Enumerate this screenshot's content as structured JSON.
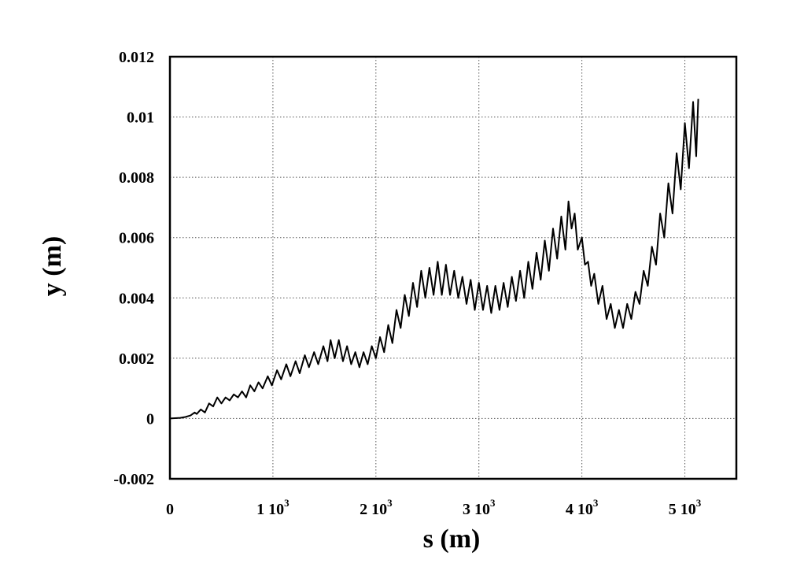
{
  "chart_data": {
    "type": "line",
    "xlabel": "s (m)",
    "ylabel": "y (m)",
    "xlim": [
      0,
      5500
    ],
    "ylim": [
      -0.002,
      0.012
    ],
    "grid": true,
    "x_ticks": [
      {
        "value": 0,
        "base": "0",
        "exp": ""
      },
      {
        "value": 1000,
        "base": "1 10",
        "exp": "3"
      },
      {
        "value": 2000,
        "base": "2 10",
        "exp": "3"
      },
      {
        "value": 3000,
        "base": "3 10",
        "exp": "3"
      },
      {
        "value": 4000,
        "base": "4 10",
        "exp": "3"
      },
      {
        "value": 5000,
        "base": "5 10",
        "exp": "3"
      }
    ],
    "y_ticks": [
      {
        "value": -0.002,
        "label": "-0.002"
      },
      {
        "value": 0,
        "label": "0"
      },
      {
        "value": 0.002,
        "label": "0.002"
      },
      {
        "value": 0.004,
        "label": "0.004"
      },
      {
        "value": 0.006,
        "label": "0.006"
      },
      {
        "value": 0.008,
        "label": "0.008"
      },
      {
        "value": 0.01,
        "label": "0.01"
      },
      {
        "value": 0.012,
        "label": "0.012"
      }
    ],
    "series": [
      {
        "color": "#000000",
        "points": [
          [
            0,
            0
          ],
          [
            100,
            2e-05
          ],
          [
            150,
            5e-05
          ],
          [
            200,
            0.0001
          ],
          [
            240,
            0.0002
          ],
          [
            260,
            0.00015
          ],
          [
            300,
            0.0003
          ],
          [
            340,
            0.0002
          ],
          [
            380,
            0.0005
          ],
          [
            420,
            0.0004
          ],
          [
            460,
            0.0007
          ],
          [
            500,
            0.0005
          ],
          [
            540,
            0.0007
          ],
          [
            580,
            0.0006
          ],
          [
            620,
            0.0008
          ],
          [
            660,
            0.0007
          ],
          [
            700,
            0.0009
          ],
          [
            740,
            0.0007
          ],
          [
            780,
            0.0011
          ],
          [
            820,
            0.0009
          ],
          [
            860,
            0.0012
          ],
          [
            900,
            0.001
          ],
          [
            950,
            0.0014
          ],
          [
            990,
            0.0011
          ],
          [
            1040,
            0.0016
          ],
          [
            1080,
            0.0013
          ],
          [
            1130,
            0.0018
          ],
          [
            1170,
            0.0014
          ],
          [
            1220,
            0.0019
          ],
          [
            1260,
            0.0015
          ],
          [
            1310,
            0.0021
          ],
          [
            1350,
            0.0017
          ],
          [
            1400,
            0.0022
          ],
          [
            1440,
            0.0018
          ],
          [
            1490,
            0.0024
          ],
          [
            1530,
            0.0019
          ],
          [
            1560,
            0.0026
          ],
          [
            1600,
            0.002
          ],
          [
            1640,
            0.0026
          ],
          [
            1680,
            0.0019
          ],
          [
            1720,
            0.0024
          ],
          [
            1760,
            0.0018
          ],
          [
            1800,
            0.0022
          ],
          [
            1840,
            0.0017
          ],
          [
            1880,
            0.0022
          ],
          [
            1920,
            0.0018
          ],
          [
            1960,
            0.0024
          ],
          [
            2000,
            0.002
          ],
          [
            2040,
            0.0027
          ],
          [
            2080,
            0.0022
          ],
          [
            2120,
            0.0031
          ],
          [
            2160,
            0.0025
          ],
          [
            2200,
            0.0036
          ],
          [
            2240,
            0.003
          ],
          [
            2280,
            0.0041
          ],
          [
            2320,
            0.0034
          ],
          [
            2360,
            0.0045
          ],
          [
            2400,
            0.0037
          ],
          [
            2440,
            0.0049
          ],
          [
            2480,
            0.004
          ],
          [
            2520,
            0.005
          ],
          [
            2560,
            0.0041
          ],
          [
            2600,
            0.0052
          ],
          [
            2640,
            0.0041
          ],
          [
            2680,
            0.0051
          ],
          [
            2720,
            0.0041
          ],
          [
            2760,
            0.0049
          ],
          [
            2800,
            0.004
          ],
          [
            2840,
            0.0047
          ],
          [
            2880,
            0.0038
          ],
          [
            2920,
            0.0046
          ],
          [
            2960,
            0.0036
          ],
          [
            3000,
            0.0045
          ],
          [
            3040,
            0.0036
          ],
          [
            3080,
            0.0044
          ],
          [
            3120,
            0.0035
          ],
          [
            3160,
            0.0044
          ],
          [
            3200,
            0.0036
          ],
          [
            3240,
            0.0045
          ],
          [
            3280,
            0.0037
          ],
          [
            3320,
            0.0047
          ],
          [
            3360,
            0.0039
          ],
          [
            3400,
            0.0049
          ],
          [
            3440,
            0.004
          ],
          [
            3480,
            0.0052
          ],
          [
            3520,
            0.0043
          ],
          [
            3560,
            0.0055
          ],
          [
            3600,
            0.0046
          ],
          [
            3640,
            0.0059
          ],
          [
            3680,
            0.0049
          ],
          [
            3720,
            0.0063
          ],
          [
            3760,
            0.0053
          ],
          [
            3800,
            0.0067
          ],
          [
            3840,
            0.0056
          ],
          [
            3870,
            0.0072
          ],
          [
            3900,
            0.0063
          ],
          [
            3930,
            0.0068
          ],
          [
            3960,
            0.0056
          ],
          [
            4000,
            0.006
          ],
          [
            4030,
            0.0051
          ],
          [
            4060,
            0.0052
          ],
          [
            4090,
            0.0044
          ],
          [
            4120,
            0.0048
          ],
          [
            4160,
            0.0038
          ],
          [
            4200,
            0.0044
          ],
          [
            4240,
            0.0033
          ],
          [
            4280,
            0.0038
          ],
          [
            4320,
            0.003
          ],
          [
            4360,
            0.0036
          ],
          [
            4400,
            0.003
          ],
          [
            4440,
            0.0038
          ],
          [
            4480,
            0.0033
          ],
          [
            4520,
            0.0042
          ],
          [
            4560,
            0.0038
          ],
          [
            4600,
            0.0049
          ],
          [
            4640,
            0.0044
          ],
          [
            4680,
            0.0057
          ],
          [
            4720,
            0.0051
          ],
          [
            4760,
            0.0068
          ],
          [
            4800,
            0.006
          ],
          [
            4840,
            0.0078
          ],
          [
            4880,
            0.0068
          ],
          [
            4920,
            0.0088
          ],
          [
            4960,
            0.0076
          ],
          [
            5000,
            0.0098
          ],
          [
            5040,
            0.0083
          ],
          [
            5080,
            0.0105
          ],
          [
            5110,
            0.0087
          ],
          [
            5130,
            0.0106
          ]
        ]
      }
    ]
  }
}
